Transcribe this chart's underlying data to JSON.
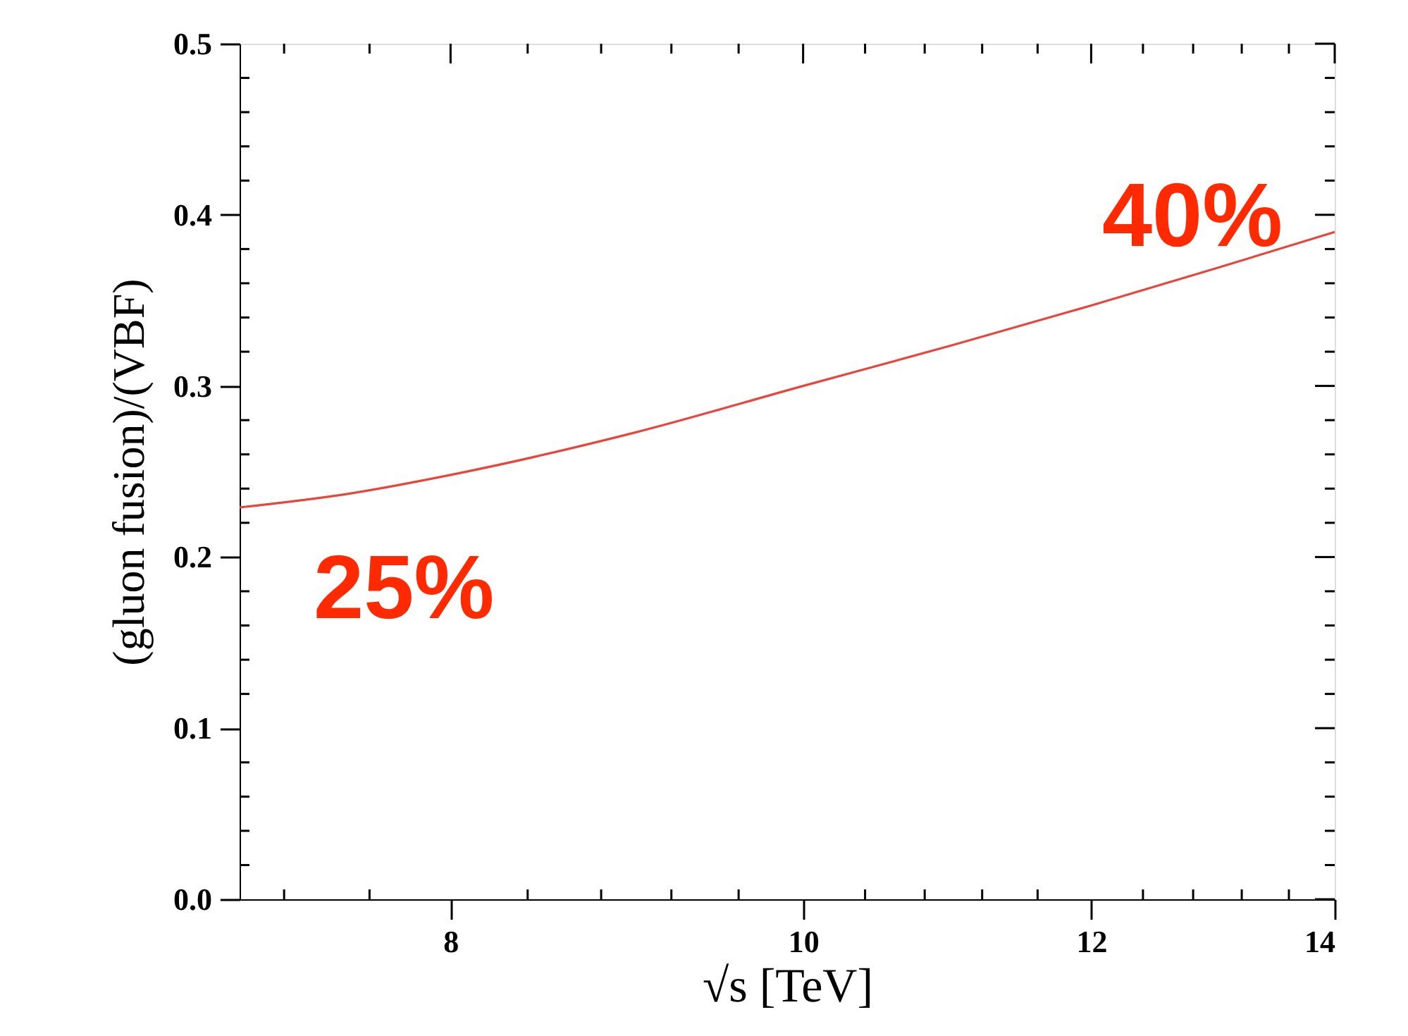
{
  "chart_data": {
    "type": "line",
    "xlabel": "√s [TeV]",
    "ylabel": "(gluon fusion)/(VBF)",
    "log": "x",
    "x": [
      7,
      7.5,
      8,
      9,
      10,
      11,
      12,
      13,
      14
    ],
    "series": [
      {
        "color": "#e8453c",
        "values": [
          0.229,
          0.237,
          0.248,
          0.273,
          0.3,
          0.324,
          0.347,
          0.369,
          0.39
        ]
      }
    ],
    "xlim": [
      7,
      14
    ],
    "ylim": [
      0,
      0.5
    ],
    "xticks": [
      {
        "value": 7.2,
        "label": null
      },
      {
        "value": 7.6,
        "label": null
      },
      8,
      {
        "value": 8.4,
        "label": null
      },
      {
        "value": 8.8,
        "label": null
      },
      {
        "value": 9.2,
        "label": null
      },
      {
        "value": 9.6,
        "label": null
      },
      10,
      {
        "value": 10.4,
        "label": null
      },
      {
        "value": 10.8,
        "label": null
      },
      {
        "value": 11.2,
        "label": null
      },
      {
        "value": 11.6,
        "label": null
      },
      12,
      {
        "value": 12.4,
        "label": null
      },
      {
        "value": 12.8,
        "label": null
      },
      {
        "value": 13.2,
        "label": null
      },
      {
        "value": 13.6,
        "label": null
      },
      14
    ],
    "yticks": [
      {
        "value": 0,
        "label": "0.0"
      },
      {
        "value": 0.02,
        "label": null
      },
      {
        "value": 0.04,
        "label": null
      },
      {
        "value": 0.06,
        "label": null
      },
      {
        "value": 0.08,
        "label": null
      },
      {
        "value": 0.1,
        "label": "0.1"
      },
      {
        "value": 0.12,
        "label": null
      },
      {
        "value": 0.14,
        "label": null
      },
      {
        "value": 0.16,
        "label": null
      },
      {
        "value": 0.18,
        "label": null
      },
      {
        "value": 0.2,
        "label": "0.2"
      },
      {
        "value": 0.22,
        "label": null
      },
      {
        "value": 0.24,
        "label": null
      },
      {
        "value": 0.26,
        "label": null
      },
      {
        "value": 0.28,
        "label": null
      },
      {
        "value": 0.3,
        "label": "0.3"
      },
      {
        "value": 0.32,
        "label": null
      },
      {
        "value": 0.34,
        "label": null
      },
      {
        "value": 0.36,
        "label": null
      },
      {
        "value": 0.38,
        "label": null
      },
      {
        "value": 0.4,
        "label": "0.4"
      },
      {
        "value": 0.42,
        "label": null
      },
      {
        "value": 0.44,
        "label": null
      },
      {
        "value": 0.46,
        "label": null
      },
      {
        "value": 0.48,
        "label": null
      },
      {
        "value": 0.5,
        "label": "0.5"
      }
    ],
    "annotations": [
      "25%",
      "40%"
    ],
    "grid": false,
    "marker": "none",
    "line_style": "solid"
  }
}
